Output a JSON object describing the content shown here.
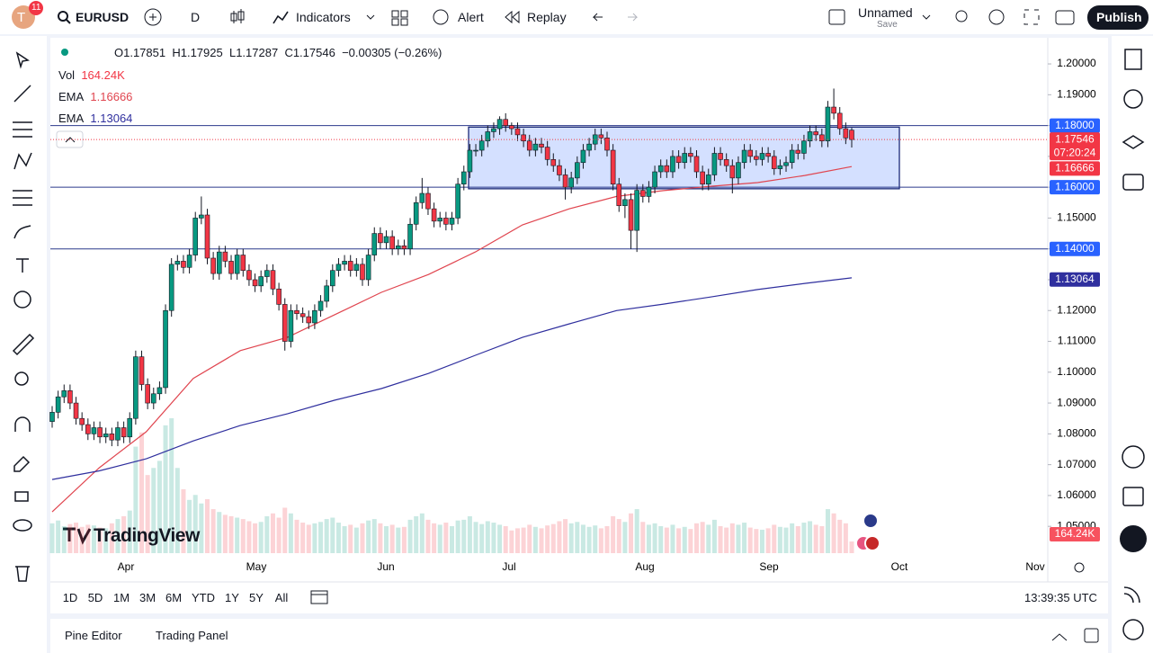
{
  "header": {
    "avatar": "T",
    "badge": "11",
    "symbol": "EURUSD",
    "interval": "D",
    "indicators": "Indicators",
    "alert": "Alert",
    "replay": "Replay",
    "layout_name": "Unnamed",
    "save": "Save",
    "publish": "Publish"
  },
  "legend": {
    "open": "O1.17851",
    "high": "H1.17925",
    "low": "L1.17287",
    "close": "C1.17546",
    "change": "−0.00305 (−0.26%)",
    "vol_label": "Vol",
    "vol_value": "164.24K",
    "ema1_label": "EMA",
    "ema1_value": "1.16666",
    "ema2_label": "EMA",
    "ema2_value": "1.13064"
  },
  "chart": {
    "up_color": "#089981",
    "down_color": "#f23645",
    "candles": [
      [
        1.084,
        1.089,
        1.082,
        1.087,
        420
      ],
      [
        1.087,
        1.094,
        1.085,
        1.092,
        460
      ],
      [
        1.092,
        1.096,
        1.09,
        1.094,
        380
      ],
      [
        1.094,
        1.096,
        1.088,
        1.09,
        410
      ],
      [
        1.09,
        1.092,
        1.083,
        1.085,
        430
      ],
      [
        1.085,
        1.087,
        1.081,
        1.083,
        370
      ],
      [
        1.083,
        1.085,
        1.078,
        1.08,
        400
      ],
      [
        1.08,
        1.084,
        1.078,
        1.082,
        390
      ],
      [
        1.082,
        1.084,
        1.077,
        1.079,
        360
      ],
      [
        1.079,
        1.082,
        1.077,
        1.08,
        350
      ],
      [
        1.08,
        1.082,
        1.076,
        1.078,
        420
      ],
      [
        1.078,
        1.084,
        1.076,
        1.082,
        480
      ],
      [
        1.082,
        1.084,
        1.077,
        1.079,
        520
      ],
      [
        1.079,
        1.087,
        1.077,
        1.085,
        600
      ],
      [
        1.085,
        1.107,
        1.083,
        1.105,
        1500
      ],
      [
        1.105,
        1.107,
        1.094,
        1.096,
        1700
      ],
      [
        1.096,
        1.098,
        1.088,
        1.09,
        1100
      ],
      [
        1.09,
        1.095,
        1.088,
        1.093,
        1200
      ],
      [
        1.093,
        1.097,
        1.091,
        1.095,
        1300
      ],
      [
        1.095,
        1.122,
        1.093,
        1.12,
        1800
      ],
      [
        1.12,
        1.137,
        1.118,
        1.135,
        1900
      ],
      [
        1.135,
        1.138,
        1.133,
        1.136,
        1200
      ],
      [
        1.136,
        1.138,
        1.132,
        1.134,
        900
      ],
      [
        1.134,
        1.14,
        1.132,
        1.138,
        750
      ],
      [
        1.138,
        1.152,
        1.136,
        1.15,
        820
      ],
      [
        1.15,
        1.157,
        1.148,
        1.151,
        700
      ],
      [
        1.151,
        1.153,
        1.135,
        1.137,
        760
      ],
      [
        1.137,
        1.139,
        1.13,
        1.132,
        620
      ],
      [
        1.132,
        1.141,
        1.13,
        1.139,
        580
      ],
      [
        1.139,
        1.141,
        1.134,
        1.136,
        540
      ],
      [
        1.136,
        1.138,
        1.13,
        1.132,
        520
      ],
      [
        1.132,
        1.14,
        1.13,
        1.138,
        500
      ],
      [
        1.138,
        1.14,
        1.131,
        1.133,
        480
      ],
      [
        1.133,
        1.135,
        1.128,
        1.13,
        450
      ],
      [
        1.13,
        1.132,
        1.126,
        1.128,
        420
      ],
      [
        1.128,
        1.133,
        1.126,
        1.131,
        440
      ],
      [
        1.131,
        1.135,
        1.129,
        1.133,
        520
      ],
      [
        1.133,
        1.135,
        1.125,
        1.127,
        560
      ],
      [
        1.127,
        1.129,
        1.12,
        1.122,
        500
      ],
      [
        1.122,
        1.124,
        1.107,
        1.11,
        640
      ],
      [
        1.11,
        1.122,
        1.108,
        1.12,
        560
      ],
      [
        1.12,
        1.122,
        1.117,
        1.119,
        470
      ],
      [
        1.119,
        1.121,
        1.116,
        1.118,
        430
      ],
      [
        1.118,
        1.12,
        1.114,
        1.116,
        400
      ],
      [
        1.116,
        1.122,
        1.114,
        1.12,
        420
      ],
      [
        1.12,
        1.125,
        1.118,
        1.123,
        440
      ],
      [
        1.123,
        1.13,
        1.121,
        1.128,
        480
      ],
      [
        1.128,
        1.135,
        1.126,
        1.133,
        500
      ],
      [
        1.133,
        1.137,
        1.131,
        1.135,
        430
      ],
      [
        1.135,
        1.138,
        1.133,
        1.136,
        380
      ],
      [
        1.136,
        1.138,
        1.131,
        1.133,
        400
      ],
      [
        1.133,
        1.137,
        1.131,
        1.135,
        360
      ],
      [
        1.135,
        1.137,
        1.128,
        1.13,
        420
      ],
      [
        1.13,
        1.14,
        1.128,
        1.138,
        460
      ],
      [
        1.138,
        1.147,
        1.136,
        1.145,
        480
      ],
      [
        1.145,
        1.147,
        1.14,
        1.142,
        420
      ],
      [
        1.142,
        1.146,
        1.14,
        1.144,
        380
      ],
      [
        1.144,
        1.146,
        1.138,
        1.14,
        400
      ],
      [
        1.14,
        1.143,
        1.138,
        1.141,
        360
      ],
      [
        1.141,
        1.143,
        1.138,
        1.14,
        370
      ],
      [
        1.14,
        1.15,
        1.138,
        1.148,
        470
      ],
      [
        1.148,
        1.157,
        1.146,
        1.155,
        520
      ],
      [
        1.155,
        1.163,
        1.153,
        1.158,
        560
      ],
      [
        1.158,
        1.16,
        1.151,
        1.153,
        470
      ],
      [
        1.153,
        1.155,
        1.147,
        1.149,
        420
      ],
      [
        1.149,
        1.152,
        1.147,
        1.15,
        400
      ],
      [
        1.15,
        1.152,
        1.146,
        1.148,
        430
      ],
      [
        1.148,
        1.152,
        1.146,
        1.15,
        380
      ],
      [
        1.15,
        1.163,
        1.148,
        1.161,
        460
      ],
      [
        1.161,
        1.167,
        1.159,
        1.165,
        470
      ],
      [
        1.165,
        1.174,
        1.163,
        1.172,
        520
      ],
      [
        1.172,
        1.174,
        1.17,
        1.172,
        440
      ],
      [
        1.172,
        1.177,
        1.17,
        1.175,
        410
      ],
      [
        1.175,
        1.18,
        1.173,
        1.178,
        450
      ],
      [
        1.178,
        1.181,
        1.176,
        1.179,
        430
      ],
      [
        1.179,
        1.183,
        1.177,
        1.182,
        400
      ],
      [
        1.182,
        1.184,
        1.178,
        1.18,
        380
      ],
      [
        1.18,
        1.181,
        1.177,
        1.179,
        320
      ],
      [
        1.179,
        1.181,
        1.175,
        1.177,
        350
      ],
      [
        1.177,
        1.179,
        1.173,
        1.175,
        360
      ],
      [
        1.175,
        1.177,
        1.17,
        1.172,
        400
      ],
      [
        1.172,
        1.176,
        1.17,
        1.174,
        370
      ],
      [
        1.174,
        1.176,
        1.171,
        1.173,
        350
      ],
      [
        1.173,
        1.175,
        1.167,
        1.169,
        390
      ],
      [
        1.169,
        1.171,
        1.165,
        1.167,
        410
      ],
      [
        1.167,
        1.169,
        1.162,
        1.164,
        450
      ],
      [
        1.164,
        1.166,
        1.156,
        1.16,
        480
      ],
      [
        1.16,
        1.165,
        1.158,
        1.163,
        420
      ],
      [
        1.163,
        1.17,
        1.161,
        1.168,
        440
      ],
      [
        1.168,
        1.174,
        1.166,
        1.172,
        400
      ],
      [
        1.172,
        1.176,
        1.17,
        1.174,
        370
      ],
      [
        1.174,
        1.179,
        1.172,
        1.177,
        390
      ],
      [
        1.177,
        1.179,
        1.174,
        1.176,
        350
      ],
      [
        1.176,
        1.178,
        1.17,
        1.172,
        380
      ],
      [
        1.172,
        1.174,
        1.159,
        1.161,
        520
      ],
      [
        1.161,
        1.163,
        1.152,
        1.154,
        480
      ],
      [
        1.154,
        1.158,
        1.15,
        1.156,
        440
      ],
      [
        1.156,
        1.158,
        1.14,
        1.146,
        560
      ],
      [
        1.146,
        1.161,
        1.139,
        1.159,
        620
      ],
      [
        1.159,
        1.161,
        1.155,
        1.157,
        440
      ],
      [
        1.157,
        1.162,
        1.155,
        1.16,
        400
      ],
      [
        1.16,
        1.167,
        1.158,
        1.165,
        420
      ],
      [
        1.165,
        1.169,
        1.163,
        1.167,
        380
      ],
      [
        1.167,
        1.169,
        1.163,
        1.165,
        360
      ],
      [
        1.165,
        1.172,
        1.163,
        1.17,
        400
      ],
      [
        1.17,
        1.172,
        1.166,
        1.168,
        350
      ],
      [
        1.168,
        1.173,
        1.166,
        1.171,
        370
      ],
      [
        1.171,
        1.173,
        1.168,
        1.17,
        340
      ],
      [
        1.17,
        1.172,
        1.163,
        1.165,
        420
      ],
      [
        1.165,
        1.167,
        1.159,
        1.161,
        440
      ],
      [
        1.161,
        1.166,
        1.159,
        1.164,
        400
      ],
      [
        1.164,
        1.173,
        1.162,
        1.171,
        470
      ],
      [
        1.171,
        1.173,
        1.167,
        1.169,
        380
      ],
      [
        1.169,
        1.171,
        1.165,
        1.167,
        360
      ],
      [
        1.167,
        1.169,
        1.158,
        1.163,
        420
      ],
      [
        1.163,
        1.17,
        1.161,
        1.168,
        400
      ],
      [
        1.168,
        1.174,
        1.166,
        1.172,
        430
      ],
      [
        1.172,
        1.174,
        1.168,
        1.17,
        360
      ],
      [
        1.17,
        1.172,
        1.167,
        1.169,
        340
      ],
      [
        1.169,
        1.173,
        1.167,
        1.171,
        330
      ],
      [
        1.171,
        1.173,
        1.168,
        1.17,
        350
      ],
      [
        1.17,
        1.172,
        1.164,
        1.166,
        400
      ],
      [
        1.166,
        1.169,
        1.164,
        1.167,
        370
      ],
      [
        1.167,
        1.17,
        1.165,
        1.168,
        360
      ],
      [
        1.168,
        1.174,
        1.166,
        1.172,
        420
      ],
      [
        1.172,
        1.174,
        1.169,
        1.171,
        380
      ],
      [
        1.171,
        1.177,
        1.169,
        1.175,
        430
      ],
      [
        1.175,
        1.18,
        1.173,
        1.178,
        450
      ],
      [
        1.178,
        1.18,
        1.175,
        1.177,
        400
      ],
      [
        1.177,
        1.179,
        1.173,
        1.175,
        380
      ],
      [
        1.175,
        1.188,
        1.173,
        1.186,
        620
      ],
      [
        1.186,
        1.192,
        1.182,
        1.184,
        560
      ],
      [
        1.184,
        1.186,
        1.177,
        1.179,
        470
      ],
      [
        1.179,
        1.181,
        1.174,
        1.176,
        420
      ],
      [
        1.17851,
        1.17925,
        1.17287,
        1.17546,
        164.24
      ]
    ],
    "ema50": {
      "name": "EMA",
      "color": "#e0454f",
      "values": [
        1.0547,
        1.069,
        1.0807,
        1.098,
        1.107,
        1.1113,
        1.1186,
        1.1259,
        1.1317,
        1.139,
        1.1478,
        1.153,
        1.157,
        1.1589,
        1.1603,
        1.1615,
        1.1638,
        1.1667
      ]
    },
    "ema200": {
      "name": "EMA",
      "color": "#2f2f9e",
      "values": [
        1.0652,
        1.068,
        1.0719,
        1.0777,
        1.0827,
        1.0865,
        1.0909,
        1.0947,
        1.0996,
        1.1055,
        1.1113,
        1.1157,
        1.12,
        1.1221,
        1.1244,
        1.1268,
        1.1288,
        1.1306
      ]
    },
    "ylim": [
      1.0413,
      1.2076
    ],
    "yticks": [
      {
        "value": 1.05,
        "label": "1.05000"
      },
      {
        "value": 1.06,
        "label": "1.06000"
      },
      {
        "value": 1.07,
        "label": "1.07000"
      },
      {
        "value": 1.08,
        "label": "1.08000"
      },
      {
        "value": 1.09,
        "label": "1.09000"
      },
      {
        "value": 1.1,
        "label": "1.10000"
      },
      {
        "value": 1.11,
        "label": "1.11000"
      },
      {
        "value": 1.12,
        "label": "1.12000"
      },
      {
        "value": 1.13,
        "label": "1.13000"
      },
      {
        "value": 1.14,
        "label": "1.14000"
      },
      {
        "value": 1.15,
        "label": "1.15000"
      },
      {
        "value": 1.16,
        "label": "1.16000"
      },
      {
        "value": 1.17,
        "label": "1.17000"
      },
      {
        "value": 1.18,
        "label": "1.18000"
      },
      {
        "value": 1.19,
        "label": "1.19000"
      },
      {
        "value": 1.2,
        "label": "1.20000"
      }
    ],
    "levels": [
      {
        "value": 1.18,
        "label": "1.18000"
      },
      {
        "value": 1.16,
        "label": "1.16000"
      },
      {
        "value": 1.14,
        "label": "1.14000"
      }
    ],
    "box": [
      1.1795,
      1.1595
    ],
    "price_label": {
      "value": 1.17546,
      "label": "1.17546",
      "countdown": "07:20:24"
    },
    "ema_labels": [
      {
        "value": 1.16666,
        "label": "1.16666",
        "color": "#f23645"
      },
      {
        "value": 1.13064,
        "label": "1.13064",
        "color": "#2f2f9e"
      }
    ],
    "volume_label": "164.24K",
    "months": [
      "Apr",
      "May",
      "Jun",
      "Jul",
      "Aug",
      "Sep",
      "Oct",
      "Nov"
    ]
  },
  "watermark": "TradingView",
  "footer": {
    "ranges": [
      "1D",
      "5D",
      "1M",
      "3M",
      "6M",
      "YTD",
      "1Y",
      "5Y",
      "All"
    ],
    "time": "13:39:35 UTC",
    "panels": [
      "Pine Editor",
      "Trading Panel"
    ]
  }
}
